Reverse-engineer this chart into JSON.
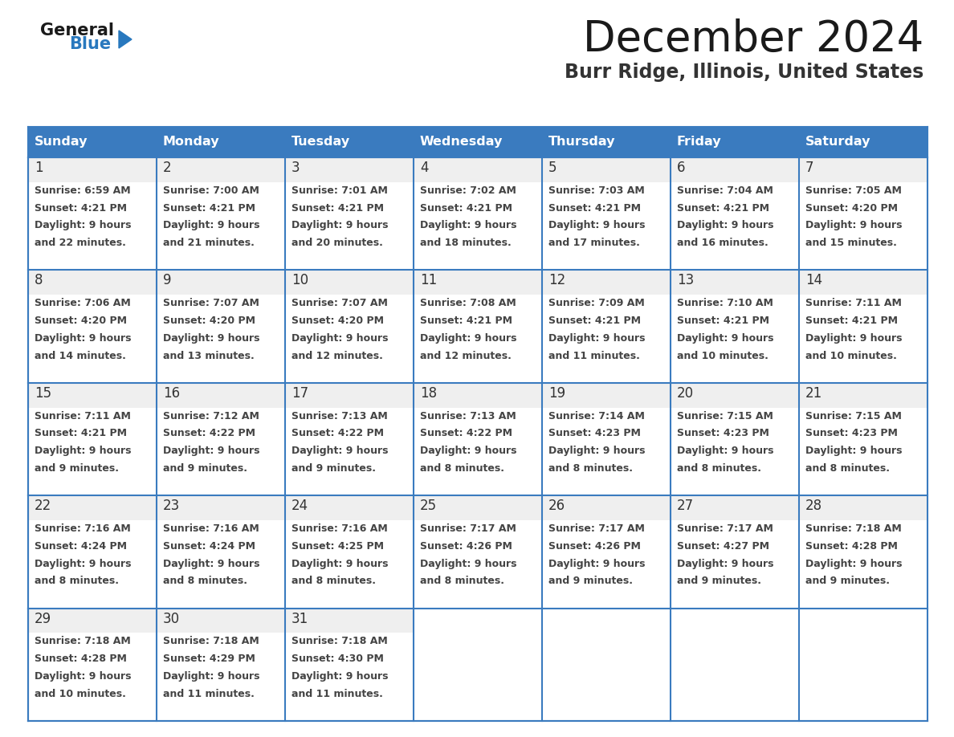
{
  "title": "December 2024",
  "subtitle": "Burr Ridge, Illinois, United States",
  "days_of_week": [
    "Sunday",
    "Monday",
    "Tuesday",
    "Wednesday",
    "Thursday",
    "Friday",
    "Saturday"
  ],
  "header_bg_color": "#3A7BBF",
  "header_text_color": "#FFFFFF",
  "cell_border_color": "#3A7BBF",
  "day_num_color": "#333333",
  "cell_text_color": "#444444",
  "title_color": "#1a1a1a",
  "subtitle_color": "#333333",
  "logo_general_color": "#1a1a1a",
  "logo_blue_color": "#2878BE",
  "background_color": "#FFFFFF",
  "day_num_bg": "#EEEEEE",
  "calendar_data": [
    [
      {
        "day": "1",
        "sunrise": "6:59 AM",
        "sunset": "4:21 PM",
        "daylight_line1": "Daylight: 9 hours",
        "daylight_line2": "and 22 minutes."
      },
      {
        "day": "2",
        "sunrise": "7:00 AM",
        "sunset": "4:21 PM",
        "daylight_line1": "Daylight: 9 hours",
        "daylight_line2": "and 21 minutes."
      },
      {
        "day": "3",
        "sunrise": "7:01 AM",
        "sunset": "4:21 PM",
        "daylight_line1": "Daylight: 9 hours",
        "daylight_line2": "and 20 minutes."
      },
      {
        "day": "4",
        "sunrise": "7:02 AM",
        "sunset": "4:21 PM",
        "daylight_line1": "Daylight: 9 hours",
        "daylight_line2": "and 18 minutes."
      },
      {
        "day": "5",
        "sunrise": "7:03 AM",
        "sunset": "4:21 PM",
        "daylight_line1": "Daylight: 9 hours",
        "daylight_line2": "and 17 minutes."
      },
      {
        "day": "6",
        "sunrise": "7:04 AM",
        "sunset": "4:21 PM",
        "daylight_line1": "Daylight: 9 hours",
        "daylight_line2": "and 16 minutes."
      },
      {
        "day": "7",
        "sunrise": "7:05 AM",
        "sunset": "4:20 PM",
        "daylight_line1": "Daylight: 9 hours",
        "daylight_line2": "and 15 minutes."
      }
    ],
    [
      {
        "day": "8",
        "sunrise": "7:06 AM",
        "sunset": "4:20 PM",
        "daylight_line1": "Daylight: 9 hours",
        "daylight_line2": "and 14 minutes."
      },
      {
        "day": "9",
        "sunrise": "7:07 AM",
        "sunset": "4:20 PM",
        "daylight_line1": "Daylight: 9 hours",
        "daylight_line2": "and 13 minutes."
      },
      {
        "day": "10",
        "sunrise": "7:07 AM",
        "sunset": "4:20 PM",
        "daylight_line1": "Daylight: 9 hours",
        "daylight_line2": "and 12 minutes."
      },
      {
        "day": "11",
        "sunrise": "7:08 AM",
        "sunset": "4:21 PM",
        "daylight_line1": "Daylight: 9 hours",
        "daylight_line2": "and 12 minutes."
      },
      {
        "day": "12",
        "sunrise": "7:09 AM",
        "sunset": "4:21 PM",
        "daylight_line1": "Daylight: 9 hours",
        "daylight_line2": "and 11 minutes."
      },
      {
        "day": "13",
        "sunrise": "7:10 AM",
        "sunset": "4:21 PM",
        "daylight_line1": "Daylight: 9 hours",
        "daylight_line2": "and 10 minutes."
      },
      {
        "day": "14",
        "sunrise": "7:11 AM",
        "sunset": "4:21 PM",
        "daylight_line1": "Daylight: 9 hours",
        "daylight_line2": "and 10 minutes."
      }
    ],
    [
      {
        "day": "15",
        "sunrise": "7:11 AM",
        "sunset": "4:21 PM",
        "daylight_line1": "Daylight: 9 hours",
        "daylight_line2": "and 9 minutes."
      },
      {
        "day": "16",
        "sunrise": "7:12 AM",
        "sunset": "4:22 PM",
        "daylight_line1": "Daylight: 9 hours",
        "daylight_line2": "and 9 minutes."
      },
      {
        "day": "17",
        "sunrise": "7:13 AM",
        "sunset": "4:22 PM",
        "daylight_line1": "Daylight: 9 hours",
        "daylight_line2": "and 9 minutes."
      },
      {
        "day": "18",
        "sunrise": "7:13 AM",
        "sunset": "4:22 PM",
        "daylight_line1": "Daylight: 9 hours",
        "daylight_line2": "and 8 minutes."
      },
      {
        "day": "19",
        "sunrise": "7:14 AM",
        "sunset": "4:23 PM",
        "daylight_line1": "Daylight: 9 hours",
        "daylight_line2": "and 8 minutes."
      },
      {
        "day": "20",
        "sunrise": "7:15 AM",
        "sunset": "4:23 PM",
        "daylight_line1": "Daylight: 9 hours",
        "daylight_line2": "and 8 minutes."
      },
      {
        "day": "21",
        "sunrise": "7:15 AM",
        "sunset": "4:23 PM",
        "daylight_line1": "Daylight: 9 hours",
        "daylight_line2": "and 8 minutes."
      }
    ],
    [
      {
        "day": "22",
        "sunrise": "7:16 AM",
        "sunset": "4:24 PM",
        "daylight_line1": "Daylight: 9 hours",
        "daylight_line2": "and 8 minutes."
      },
      {
        "day": "23",
        "sunrise": "7:16 AM",
        "sunset": "4:24 PM",
        "daylight_line1": "Daylight: 9 hours",
        "daylight_line2": "and 8 minutes."
      },
      {
        "day": "24",
        "sunrise": "7:16 AM",
        "sunset": "4:25 PM",
        "daylight_line1": "Daylight: 9 hours",
        "daylight_line2": "and 8 minutes."
      },
      {
        "day": "25",
        "sunrise": "7:17 AM",
        "sunset": "4:26 PM",
        "daylight_line1": "Daylight: 9 hours",
        "daylight_line2": "and 8 minutes."
      },
      {
        "day": "26",
        "sunrise": "7:17 AM",
        "sunset": "4:26 PM",
        "daylight_line1": "Daylight: 9 hours",
        "daylight_line2": "and 9 minutes."
      },
      {
        "day": "27",
        "sunrise": "7:17 AM",
        "sunset": "4:27 PM",
        "daylight_line1": "Daylight: 9 hours",
        "daylight_line2": "and 9 minutes."
      },
      {
        "day": "28",
        "sunrise": "7:18 AM",
        "sunset": "4:28 PM",
        "daylight_line1": "Daylight: 9 hours",
        "daylight_line2": "and 9 minutes."
      }
    ],
    [
      {
        "day": "29",
        "sunrise": "7:18 AM",
        "sunset": "4:28 PM",
        "daylight_line1": "Daylight: 9 hours",
        "daylight_line2": "and 10 minutes."
      },
      {
        "day": "30",
        "sunrise": "7:18 AM",
        "sunset": "4:29 PM",
        "daylight_line1": "Daylight: 9 hours",
        "daylight_line2": "and 11 minutes."
      },
      {
        "day": "31",
        "sunrise": "7:18 AM",
        "sunset": "4:30 PM",
        "daylight_line1": "Daylight: 9 hours",
        "daylight_line2": "and 11 minutes."
      },
      null,
      null,
      null,
      null
    ]
  ]
}
